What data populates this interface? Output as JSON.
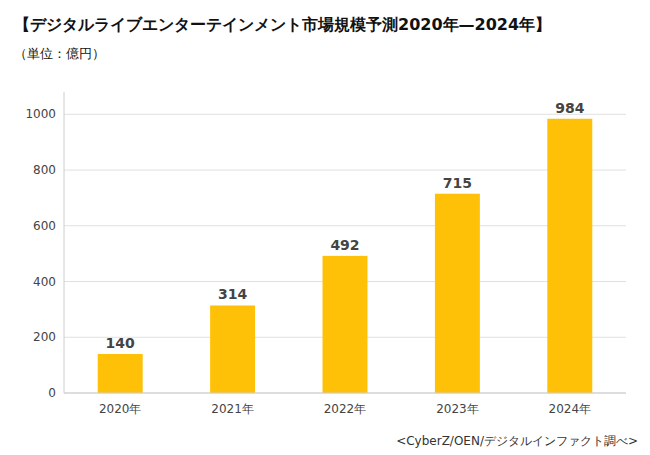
{
  "chart_data": {
    "type": "bar",
    "title": "【デジタルライブエンターテインメント市場規模予測2020年—2024年】",
    "subtitle": "（単位：億円）",
    "source": "<CyberZ/OEN/デジタルインファクト調べ>",
    "categories": [
      "2020年",
      "2021年",
      "2022年",
      "2023年",
      "2024年"
    ],
    "values": [
      140,
      314,
      492,
      715,
      984
    ],
    "color": "#FFC107",
    "ylim": [
      0,
      1080
    ],
    "yticks": [
      0,
      200,
      400,
      600,
      800,
      1000
    ],
    "grid": true,
    "data_labels": true
  }
}
